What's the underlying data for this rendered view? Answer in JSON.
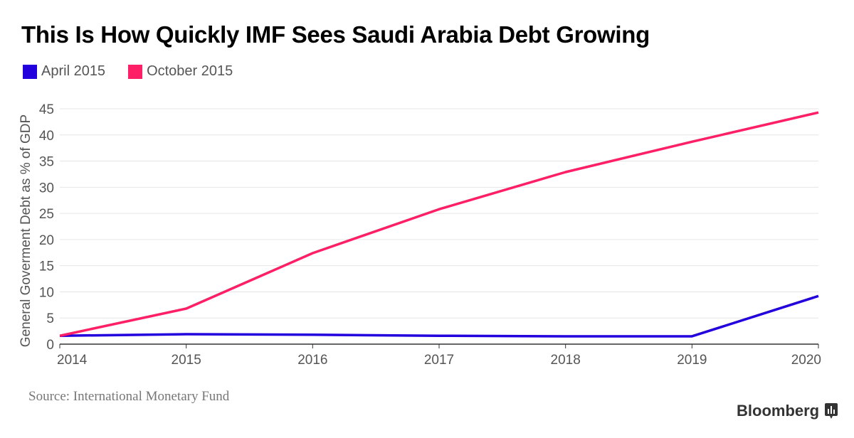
{
  "chart_data": {
    "type": "line",
    "title": "This Is How Quickly IMF Sees Saudi Arabia Debt Growing",
    "ylabel": "General Goverment Debt as % of GDP",
    "xlabel": "",
    "x": [
      2014,
      2015,
      2016,
      2017,
      2018,
      2019,
      2020
    ],
    "ylim": [
      0,
      45
    ],
    "yticks": [
      0,
      5,
      10,
      15,
      20,
      25,
      30,
      35,
      40,
      45
    ],
    "grid": true,
    "legend_placement": "top-left",
    "series": [
      {
        "name": "April 2015",
        "color": "#2200dd",
        "values": [
          1.6,
          1.9,
          1.8,
          1.6,
          1.5,
          1.5,
          9.2
        ]
      },
      {
        "name": "October 2015",
        "color": "#ff1f66",
        "values": [
          1.6,
          6.8,
          17.4,
          25.8,
          32.9,
          38.7,
          44.3
        ]
      }
    ]
  },
  "source": "Source: International Monetary Fund",
  "logo": "Bloomberg"
}
